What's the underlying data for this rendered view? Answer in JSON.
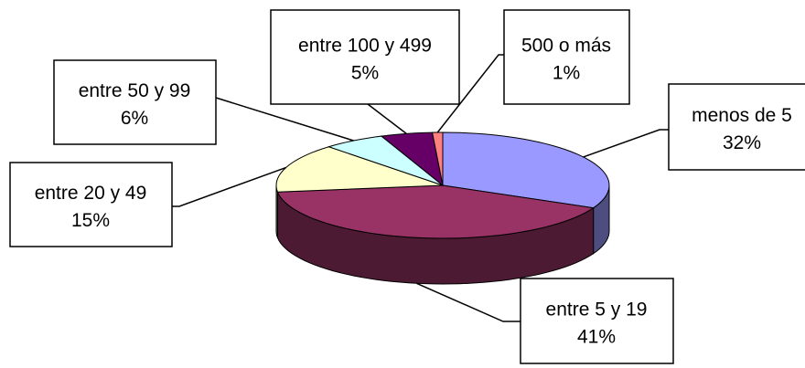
{
  "chart_data": {
    "type": "pie",
    "three_d": true,
    "legend": "none",
    "slices": [
      {
        "label": "menos de 5",
        "value": 32,
        "value_label": "32%",
        "color": "#9999FF",
        "side_color": "#4D4D80"
      },
      {
        "label": "entre 5 y 19",
        "value": 41,
        "value_label": "41%",
        "color": "#993366",
        "side_color": "#4D1A33"
      },
      {
        "label": "entre 20 y 49",
        "value": 15,
        "value_label": "15%",
        "color": "#FFFFCC",
        "side_color": "#808066"
      },
      {
        "label": "entre 50 y 99",
        "value": 6,
        "value_label": "6%",
        "color": "#CCFFFF",
        "side_color": "#668080"
      },
      {
        "label": "entre 100 y 499",
        "value": 5,
        "value_label": "5%",
        "color": "#660066",
        "side_color": "#330033"
      },
      {
        "label": "500 o más",
        "value": 1,
        "value_label": "1%",
        "color": "#FF8080",
        "side_color": "#804040"
      }
    ]
  }
}
